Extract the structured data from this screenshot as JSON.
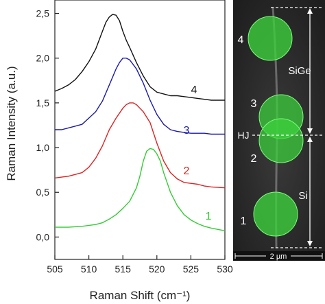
{
  "chart_data": {
    "type": "line",
    "xlabel": "Raman Shift (cm⁻¹)",
    "ylabel": "Raman Intensity (a.u.)",
    "xlim": [
      505,
      530
    ],
    "ylim": [
      -0.25,
      2.65
    ],
    "x_ticks": [
      505,
      510,
      515,
      520,
      525,
      530
    ],
    "y_ticks": [
      0.0,
      0.5,
      1.0,
      1.5,
      2.0,
      2.5
    ],
    "x_tick_labels": [
      "505",
      "510",
      "515",
      "520",
      "525",
      "530"
    ],
    "y_tick_labels": [
      "0,0",
      "0,5",
      "1,0",
      "1,5",
      "2,0",
      "2,5"
    ],
    "grid": false,
    "series": [
      {
        "label": "1",
        "color": "#33cc33",
        "x": [
          505,
          507,
          509,
          511,
          512,
          513,
          514,
          515,
          516,
          517,
          517.5,
          518,
          518.5,
          519,
          519.5,
          520,
          520.5,
          521,
          522,
          523,
          524,
          525,
          526,
          527,
          528,
          530
        ],
        "y": [
          0.11,
          0.11,
          0.12,
          0.14,
          0.16,
          0.2,
          0.25,
          0.32,
          0.4,
          0.55,
          0.68,
          0.85,
          0.96,
          0.99,
          0.98,
          0.93,
          0.85,
          0.72,
          0.5,
          0.35,
          0.25,
          0.19,
          0.15,
          0.12,
          0.1,
          0.07
        ]
      },
      {
        "label": "2",
        "color": "#dd2222",
        "x": [
          505,
          506,
          507,
          508,
          509,
          510,
          511,
          512,
          513,
          514,
          515,
          515.5,
          516,
          516.5,
          517,
          517.5,
          518,
          519,
          520,
          521,
          522,
          523,
          524,
          525,
          526,
          527,
          528,
          530
        ],
        "y": [
          0.66,
          0.67,
          0.68,
          0.7,
          0.72,
          0.78,
          0.88,
          1.02,
          1.2,
          1.33,
          1.44,
          1.48,
          1.5,
          1.5,
          1.48,
          1.44,
          1.4,
          1.28,
          1.05,
          0.85,
          0.72,
          0.65,
          0.61,
          0.6,
          0.59,
          0.57,
          0.56,
          0.55
        ]
      },
      {
        "label": "3",
        "color": "#1a1aaa",
        "x": [
          505,
          506,
          507,
          508,
          509,
          510,
          511,
          512,
          513,
          514,
          514.5,
          515,
          515.5,
          516,
          516.5,
          517,
          518,
          519,
          520,
          521,
          522,
          523,
          524,
          525,
          526,
          527,
          528,
          530
        ],
        "y": [
          1.2,
          1.2,
          1.22,
          1.24,
          1.26,
          1.33,
          1.4,
          1.52,
          1.7,
          1.88,
          1.95,
          2.0,
          2.0,
          1.98,
          1.93,
          1.88,
          1.72,
          1.53,
          1.37,
          1.26,
          1.2,
          1.18,
          1.17,
          1.16,
          1.16,
          1.16,
          1.15,
          1.15
        ]
      },
      {
        "label": "4",
        "color": "#111111",
        "x": [
          505,
          506,
          507,
          508,
          509,
          510,
          511,
          512,
          512.5,
          513,
          513.5,
          514,
          514.5,
          515,
          515.5,
          516,
          517,
          518,
          519,
          520,
          521,
          522,
          523,
          524,
          525,
          526,
          527,
          528,
          530
        ],
        "y": [
          1.63,
          1.66,
          1.7,
          1.76,
          1.85,
          1.96,
          2.1,
          2.3,
          2.4,
          2.46,
          2.49,
          2.48,
          2.42,
          2.3,
          2.2,
          2.12,
          1.95,
          1.8,
          1.68,
          1.62,
          1.6,
          1.58,
          1.58,
          1.57,
          1.56,
          1.55,
          1.54,
          1.53,
          1.53
        ]
      }
    ]
  },
  "micrograph": {
    "spot_labels": [
      "4",
      "3",
      "2",
      "1"
    ],
    "region_labels": [
      "SiGe",
      "HJ",
      "Si"
    ],
    "scale_bar": "2 µm"
  },
  "colors": {
    "spot_fill": "#3cd23c",
    "background": "#262626"
  }
}
